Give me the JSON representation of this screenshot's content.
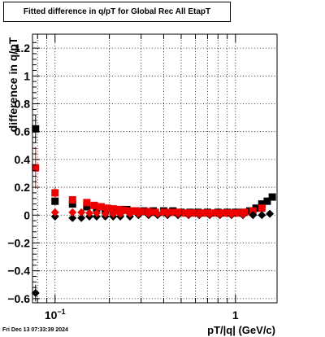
{
  "chart_data": {
    "type": "scatter",
    "title": "Fitted difference in q/pT for Global Rec All EtapT",
    "xlabel": "pT/|q| (GeV/c)",
    "ylabel": "difference in q/pT",
    "x_scale": "log",
    "xlim": [
      0.075,
      1.7
    ],
    "ylim": [
      -0.63,
      1.3
    ],
    "y_ticks": [
      -0.6,
      -0.4,
      -0.2,
      0,
      0.2,
      0.4,
      0.6,
      0.8,
      1,
      1.2
    ],
    "y_tick_labels": [
      "−0.6",
      "−0.4",
      "−0.2",
      "0",
      "0.2",
      "0.4",
      "0.6",
      "0.8",
      "1",
      "1.2"
    ],
    "x_tick_labels": [
      {
        "x": 0.1,
        "base": "10",
        "exp": "−1"
      },
      {
        "x": 1,
        "base": "1",
        "exp": ""
      }
    ],
    "grid": true,
    "timestamp": "Fri Dec 13 07:33:39 2024",
    "colors": {
      "black": "#000000",
      "red": "#ee0000",
      "frame": "#000000",
      "grid": "#000000"
    },
    "series": [
      {
        "marker": "square",
        "color": "#000000",
        "x": [
          0.078,
          0.1,
          0.125,
          0.15,
          0.17,
          0.19,
          0.21,
          0.23,
          0.25,
          0.28,
          0.31,
          0.35,
          0.4,
          0.45,
          0.5,
          0.56,
          0.62,
          0.7,
          0.8,
          0.9,
          1.0,
          1.1,
          1.2,
          1.3,
          1.4,
          1.5,
          1.6
        ],
        "y": [
          0.62,
          0.1,
          0.08,
          0.06,
          0.05,
          0.04,
          0.04,
          0.04,
          0.04,
          0.03,
          0.03,
          0.03,
          0.03,
          0.03,
          0.02,
          0.02,
          0.02,
          0.02,
          0.02,
          0.02,
          0.02,
          0.02,
          0.03,
          0.05,
          0.08,
          0.1,
          0.13
        ],
        "yerr": [
          0.1,
          0.02,
          0.015,
          0.01,
          0.01,
          0.01,
          0.01,
          0.01,
          0.01,
          0.01,
          0.01,
          0.01,
          0.01,
          0.01,
          0.01,
          0.01,
          0.01,
          0.01,
          0.01,
          0.01,
          0.01,
          0.01,
          0.01,
          0.01,
          0.01,
          0.01,
          0.02
        ]
      },
      {
        "marker": "square",
        "color": "#ee0000",
        "x": [
          0.078,
          0.1,
          0.125,
          0.15,
          0.165,
          0.18,
          0.195,
          0.21,
          0.225,
          0.24,
          0.26,
          0.28,
          0.3,
          0.33,
          0.36,
          0.4,
          0.44,
          0.48,
          0.53,
          0.58,
          0.64,
          0.7,
          0.77,
          0.85,
          0.93,
          1.02,
          1.12,
          1.25,
          1.4
        ],
        "y": [
          0.34,
          0.16,
          0.11,
          0.09,
          0.07,
          0.06,
          0.05,
          0.045,
          0.04,
          0.035,
          0.03,
          0.03,
          0.025,
          0.025,
          0.02,
          0.02,
          0.02,
          0.02,
          0.015,
          0.015,
          0.015,
          0.015,
          0.015,
          0.015,
          0.015,
          0.015,
          0.02,
          0.03,
          0.05
        ],
        "yerr": [
          0.15,
          0.04,
          0.02,
          0.01,
          0.01,
          0.01,
          0.01,
          0.01,
          0.01,
          0.01,
          0.01,
          0.01,
          0.01,
          0.01,
          0.01,
          0.01,
          0.01,
          0.01,
          0.01,
          0.01,
          0.01,
          0.01,
          0.01,
          0.01,
          0.01,
          0.01,
          0.01,
          0.01,
          0.01
        ]
      },
      {
        "marker": "diamond",
        "color": "#000000",
        "x": [
          0.078,
          0.1,
          0.125,
          0.14,
          0.155,
          0.17,
          0.19,
          0.21,
          0.23,
          0.26,
          0.29,
          0.33,
          0.37,
          0.42,
          0.48,
          0.55,
          0.63,
          0.72,
          0.82,
          0.95,
          1.1,
          1.25,
          1.4,
          1.55
        ],
        "y": [
          -0.56,
          -0.01,
          -0.02,
          -0.02,
          -0.01,
          -0.01,
          -0.01,
          -0.01,
          -0.01,
          -0.01,
          0.0,
          0.0,
          0.0,
          0.0,
          0.0,
          0.0,
          0.0,
          0.0,
          0.0,
          0.0,
          0.0,
          0.0,
          0.0,
          0.01
        ],
        "yerr": [
          0.06,
          0.01,
          0.01,
          0.01,
          0.01,
          0.01,
          0.01,
          0.01,
          0.01,
          0.01,
          0.01,
          0.01,
          0.01,
          0.01,
          0.01,
          0.01,
          0.01,
          0.01,
          0.01,
          0.01,
          0.01,
          0.01,
          0.01,
          0.01
        ]
      },
      {
        "marker": "diamond",
        "color": "#ee0000",
        "x": [
          0.1,
          0.125,
          0.14,
          0.155,
          0.17,
          0.19,
          0.21,
          0.23,
          0.26,
          0.29,
          0.33,
          0.37,
          0.42,
          0.48,
          0.55,
          0.63,
          0.72,
          0.82,
          0.95,
          1.1
        ],
        "y": [
          0.02,
          0.02,
          0.02,
          0.015,
          0.015,
          0.01,
          0.01,
          0.01,
          0.01,
          0.01,
          0.01,
          0.01,
          0.01,
          0.01,
          0.005,
          0.005,
          0.005,
          0.005,
          0.005,
          0.005
        ],
        "yerr": [
          0.01,
          0.01,
          0.01,
          0.01,
          0.01,
          0.01,
          0.01,
          0.01,
          0.01,
          0.01,
          0.01,
          0.01,
          0.01,
          0.01,
          0.01,
          0.01,
          0.01,
          0.01,
          0.01,
          0.01
        ]
      }
    ]
  }
}
